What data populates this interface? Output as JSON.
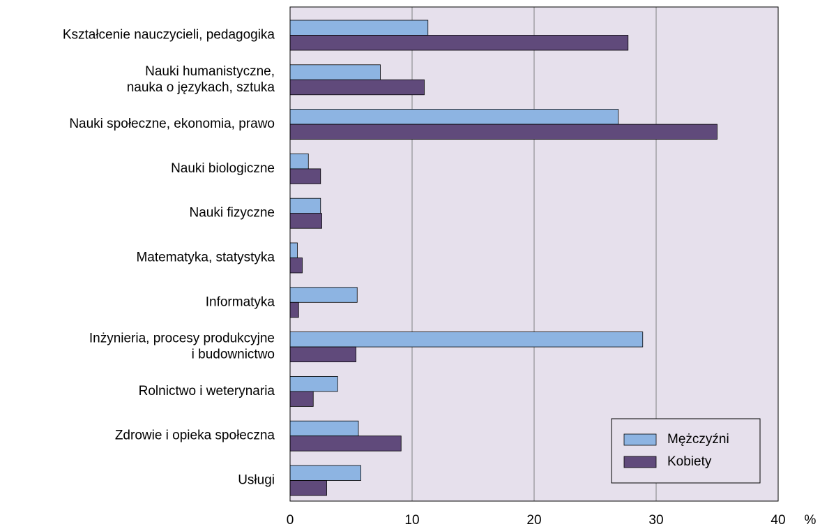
{
  "chart_data": {
    "type": "hbar",
    "categories": [
      "Kształcenie nauczycieli, pedagogika",
      "Nauki humanistyczne,\nnauka o językach, sztuka",
      "Nauki społeczne, ekonomia, prawo",
      "Nauki biologiczne",
      "Nauki fizyczne",
      "Matematyka, statystyka",
      "Informatyka",
      "Inżynieria, procesy produkcyjne\ni budownictwo",
      "Rolnictwo i weterynaria",
      "Zdrowie i opieka społeczna",
      "Usługi"
    ],
    "series": [
      {
        "name": "Mężczyźni",
        "color": "#8db4e2",
        "values": [
          11.3,
          7.4,
          26.9,
          1.5,
          2.5,
          0.6,
          5.5,
          28.9,
          3.9,
          5.6,
          5.8
        ]
      },
      {
        "name": "Kobiety",
        "color": "#604a7b",
        "values": [
          27.7,
          11.0,
          35.0,
          2.5,
          2.6,
          1.0,
          0.7,
          5.4,
          1.9,
          9.1,
          3.0
        ]
      }
    ],
    "xlim": [
      0,
      40
    ],
    "xticks": [
      0,
      10,
      20,
      30,
      40
    ],
    "x_unit": "%",
    "grid": true,
    "legend": "lower right"
  }
}
